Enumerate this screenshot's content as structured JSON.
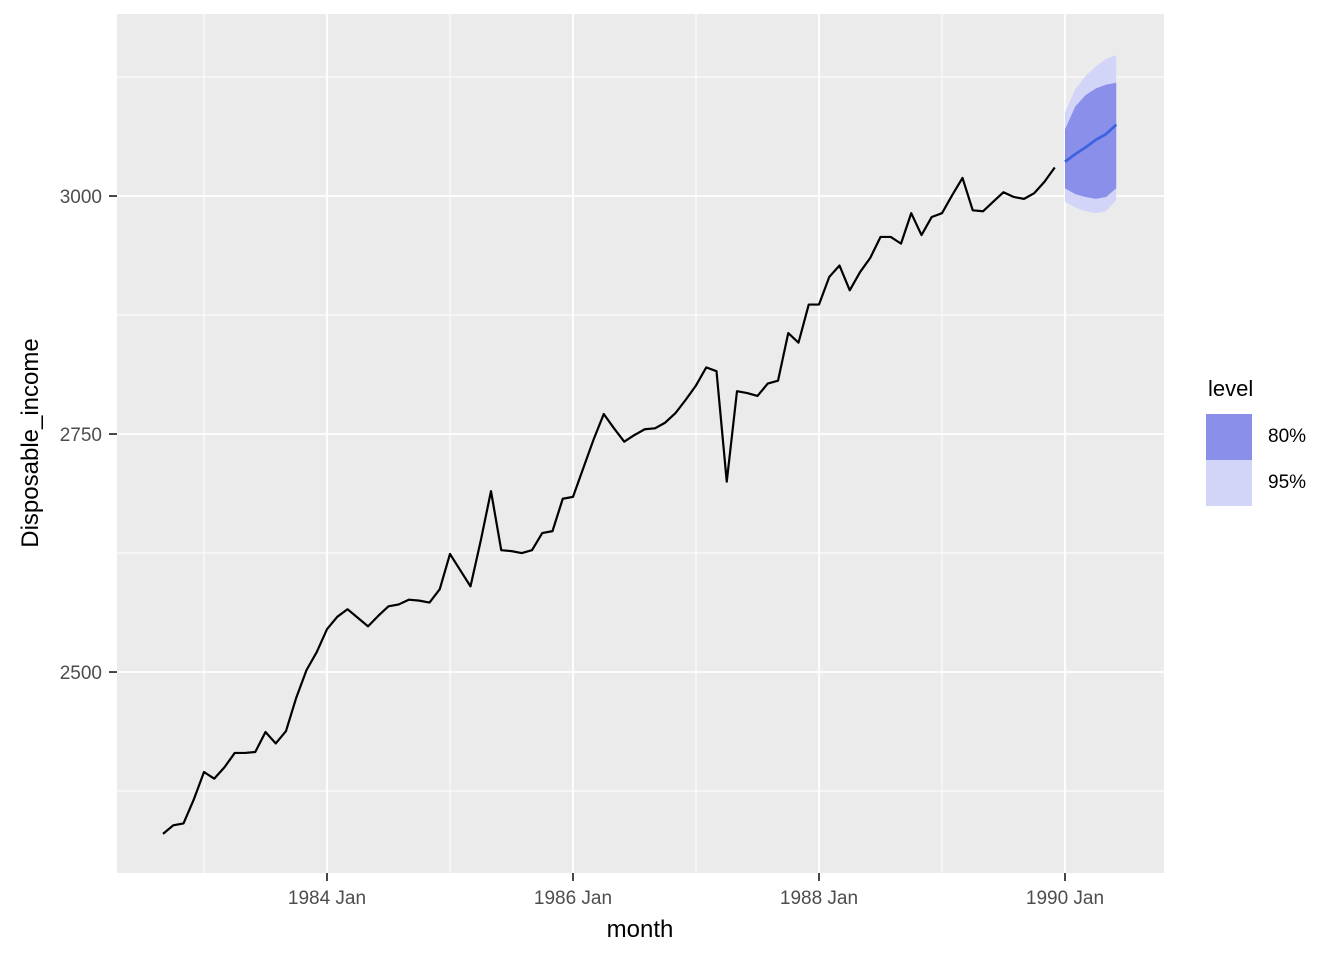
{
  "chart_data": {
    "type": "line",
    "title": "",
    "xlabel": "month",
    "ylabel": "Disposable_income",
    "x_domain": [
      1982.2927,
      1990.8049
    ],
    "y_domain": [
      2288.9,
      3191.2
    ],
    "x_major_ticks": [
      {
        "t": 1984.0,
        "label": "1984 Jan"
      },
      {
        "t": 1986.0,
        "label": "1986 Jan"
      },
      {
        "t": 1988.0,
        "label": "1988 Jan"
      },
      {
        "t": 1990.0,
        "label": "1990 Jan"
      }
    ],
    "x_minor_gridlines": [
      1983.0,
      1985.0,
      1987.0,
      1989.0
    ],
    "y_major_ticks": [
      {
        "v": 2500,
        "label": "2500"
      },
      {
        "v": 2750,
        "label": "2750"
      },
      {
        "v": 3000,
        "label": "3000"
      }
    ],
    "y_minor_gridlines": [
      2375,
      2625,
      2875,
      3125
    ],
    "grid": "on",
    "legend_position": "right",
    "series": {
      "name": "Disposable_income",
      "start_year": 1982,
      "start_month": 9,
      "frequency": "monthly",
      "values": [
        2330,
        2339,
        2341,
        2366,
        2395,
        2388,
        2400,
        2415,
        2415,
        2416,
        2437,
        2425,
        2438,
        2473,
        2502,
        2521,
        2545,
        2558,
        2566,
        2557,
        2548,
        2559,
        2569,
        2571,
        2576,
        2575,
        2573,
        2587,
        2624,
        2607,
        2590,
        2638,
        2690,
        2628,
        2627,
        2625,
        2628,
        2646,
        2648,
        2682,
        2684,
        2714,
        2744,
        2771,
        2756,
        2742,
        2749,
        2755,
        2756,
        2762,
        2772,
        2786,
        2801,
        2820,
        2816,
        2700,
        2795,
        2793,
        2790,
        2803,
        2806,
        2856,
        2846,
        2886,
        2886,
        2915,
        2927,
        2901,
        2920,
        2935,
        2957,
        2957,
        2950,
        2982,
        2959,
        2978,
        2982,
        3001,
        3019,
        2985,
        2984,
        2994,
        3004,
        2999,
        2997,
        3003,
        3015,
        3030
      ]
    },
    "forecast": {
      "start_year": 1990,
      "start_month": 1,
      "mean": [
        3036,
        3044,
        3051,
        3059,
        3065,
        3075
      ],
      "hi80": [
        3070,
        3094,
        3106,
        3113,
        3117,
        3119
      ],
      "lo80": [
        3008,
        3002,
        2999,
        2997,
        2999,
        3008
      ],
      "hi95": [
        3088,
        3112,
        3126,
        3136,
        3144,
        3148
      ],
      "lo95": [
        2994,
        2988,
        2984,
        2982,
        2984,
        2996
      ]
    },
    "legend": {
      "title": "level",
      "items": [
        {
          "label": "80%",
          "color": "#8A90EA"
        },
        {
          "label": "95%",
          "color": "#D3D5F8"
        }
      ]
    },
    "colors": {
      "history_line": "#000000",
      "forecast_line": "#3F62E0",
      "fill80": "#8A90EA",
      "fill95": "#D3D5F8",
      "panel_bg": "#EBEBEB",
      "grid": "#FFFFFF",
      "tick": "#333333",
      "tick_label": "#4D4D4D"
    }
  }
}
